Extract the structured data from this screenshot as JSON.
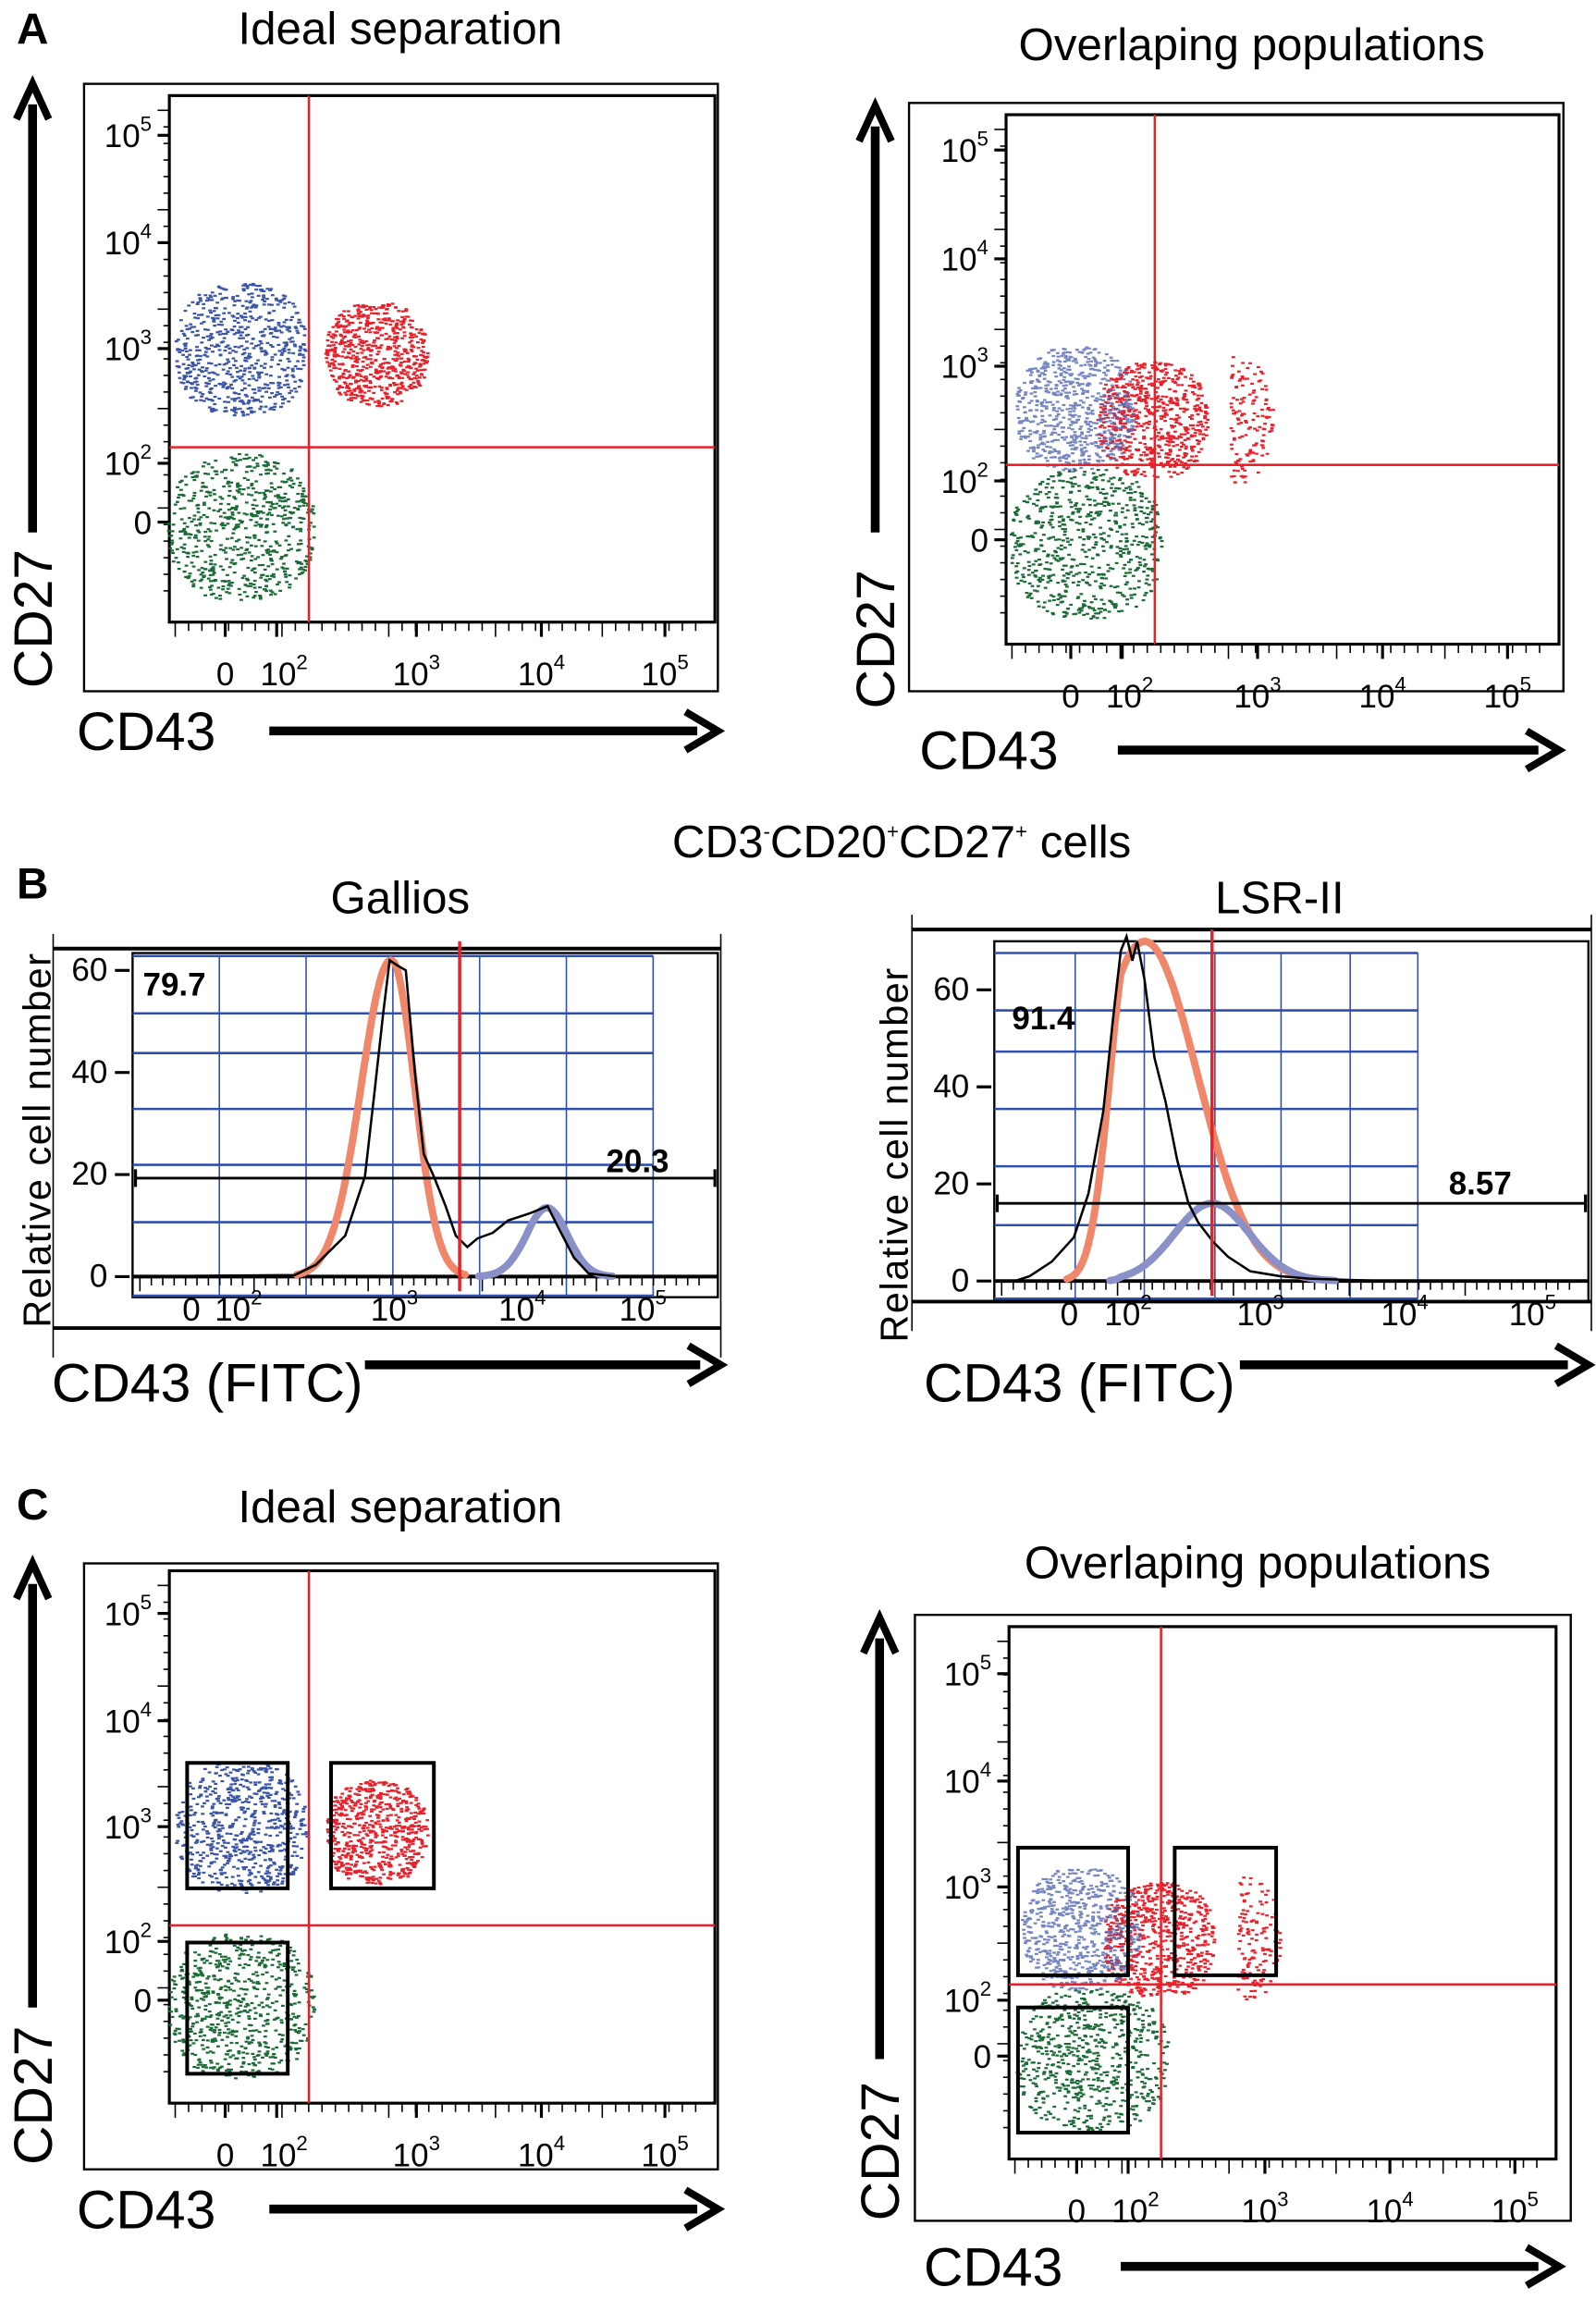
{
  "panel_letters": [
    "A",
    "B",
    "C"
  ],
  "header_b": {
    "parts": [
      [
        "CD3",
        "-"
      ],
      [
        "CD20",
        "+"
      ],
      [
        "CD27",
        "+"
      ],
      [
        " cells",
        ""
      ]
    ]
  },
  "chart_data": [
    {
      "panel": "A",
      "type": "scatter",
      "title": "Ideal separation",
      "xlabel": "CD43",
      "ylabel": "CD27",
      "x_ticks": [
        {
          "b": "0",
          "e": ""
        },
        {
          "b": "10",
          "e": "2"
        },
        {
          "b": "10",
          "e": "3"
        },
        {
          "b": "10",
          "e": "4"
        },
        {
          "b": "10",
          "e": "5"
        }
      ],
      "y_ticks": [
        {
          "b": "0",
          "e": ""
        },
        {
          "b": "10",
          "e": "2"
        },
        {
          "b": "10",
          "e": "3"
        },
        {
          "b": "10",
          "e": "4"
        },
        {
          "b": "10",
          "e": "5"
        }
      ],
      "quadrant_gate": {
        "CD43": 170,
        "CD27": 138
      },
      "populations": [
        {
          "color": "#1b6b36",
          "CD43": [
            -114,
            182
          ],
          "CD27": [
            -133,
            123
          ]
        },
        {
          "color": "#3a55a8",
          "CD43": [
            -100,
            162
          ],
          "CD27": [
            265,
            4200
          ]
        },
        {
          "color": "#e8212b",
          "CD43": [
            219,
            1200
          ],
          "CD27": [
            320,
            2800
          ]
        }
      ],
      "gate_boxes": []
    },
    {
      "panel": "A",
      "type": "scatter",
      "title": "Overlaping populations",
      "xlabel": "CD43",
      "ylabel": "CD27",
      "x_ticks": [
        {
          "b": "0",
          "e": ""
        },
        {
          "b": "10",
          "e": "2"
        },
        {
          "b": "10",
          "e": "3"
        },
        {
          "b": "10",
          "e": "4"
        },
        {
          "b": "10",
          "e": "5"
        }
      ],
      "y_ticks": [
        {
          "b": "0",
          "e": ""
        },
        {
          "b": "10",
          "e": "2"
        },
        {
          "b": "10",
          "e": "3"
        },
        {
          "b": "10",
          "e": "4"
        },
        {
          "b": "10",
          "e": "5"
        }
      ],
      "quadrant_gate": {
        "CD43": 174,
        "CD27": 138
      },
      "populations": [
        {
          "color": "#1b6b36",
          "CD43": [
            -120,
            195
          ],
          "CD27": [
            -133,
            130
          ]
        },
        {
          "color": "#e8212b",
          "CD43": [
            49,
            420
          ],
          "CD27": [
            107,
            1130
          ]
        },
        {
          "color": "#e8212b",
          "CD43": [
            300,
            1300
          ],
          "CD27": [
            95,
            1300
          ],
          "sparse": true
        },
        {
          "color": "#5468b4",
          "CD43": [
            -109,
            120
          ],
          "CD27": [
            123,
            1550
          ]
        }
      ],
      "gate_boxes": []
    },
    {
      "panel": "B",
      "type": "histogram",
      "title": "Gallios",
      "xlabel": "CD43 (FITC)",
      "ylabel": "Relative cell number",
      "x_ticks": [
        {
          "b": "0",
          "e": ""
        },
        {
          "b": "10",
          "e": "2"
        },
        {
          "b": "10",
          "e": "3"
        },
        {
          "b": "10",
          "e": "4"
        },
        {
          "b": "10",
          "e": "5"
        }
      ],
      "y_ticks": [
        "0",
        "20",
        "40",
        "60"
      ],
      "ylim": [
        0,
        65
      ],
      "threshold_CD43": 3240,
      "gate_bar_level": 19.3,
      "percentages": {
        "left": "79.7",
        "right": "20.3"
      },
      "data_curve": {
        "color": "#000000",
        "points": [
          [
            -140,
            0
          ],
          [
            100,
            0.2
          ],
          [
            245,
            0.3
          ],
          [
            330,
            2.3
          ],
          [
            500,
            8
          ],
          [
            660,
            19.6
          ],
          [
            760,
            36.9
          ],
          [
            850,
            51
          ],
          [
            935,
            62
          ],
          [
            1050,
            61
          ],
          [
            1230,
            60
          ],
          [
            1450,
            40
          ],
          [
            1700,
            24
          ],
          [
            2040,
            19.6
          ],
          [
            2520,
            13.8
          ],
          [
            3020,
            8
          ],
          [
            3720,
            5.8
          ],
          [
            4470,
            7.5
          ],
          [
            5890,
            8.6
          ],
          [
            7760,
            11
          ],
          [
            11500,
            12.4
          ],
          [
            16200,
            13.8
          ],
          [
            20000,
            9.5
          ],
          [
            26900,
            3.7
          ],
          [
            35500,
            0.6
          ],
          [
            61700,
            0
          ],
          [
            150000,
            0
          ]
        ]
      },
      "fits": [
        {
          "color": "#f0866a",
          "center_CD43": 950,
          "height": 62,
          "sd_decades": 0.18
        },
        {
          "color": "#8a90c8",
          "center_CD43": 16000,
          "height": 13.5,
          "sd_decades": 0.17
        }
      ]
    },
    {
      "panel": "B",
      "type": "histogram",
      "title": "LSR-II",
      "xlabel": "CD43 (FITC)",
      "ylabel": "Relative cell number",
      "x_ticks": [
        {
          "b": "0",
          "e": ""
        },
        {
          "b": "10",
          "e": "2"
        },
        {
          "b": "10",
          "e": "3"
        },
        {
          "b": "10",
          "e": "4"
        },
        {
          "b": "10",
          "e": "5"
        }
      ],
      "y_ticks": [
        "0",
        "20",
        "40",
        "60"
      ],
      "ylim": [
        0,
        72
      ],
      "threshold_CD43": 450,
      "gate_bar_level": 16,
      "percentages": {
        "left": "91.4",
        "right": "8.57"
      },
      "data_curve": {
        "color": "#000000",
        "points": [
          [
            -106,
            0
          ],
          [
            -77,
            1
          ],
          [
            -34,
            4
          ],
          [
            9,
            9
          ],
          [
            37,
            18
          ],
          [
            66,
            35
          ],
          [
            86,
            55
          ],
          [
            100,
            68
          ],
          [
            110,
            71
          ],
          [
            121,
            66
          ],
          [
            131,
            70
          ],
          [
            148,
            62
          ],
          [
            174,
            46
          ],
          [
            209,
            37
          ],
          [
            253,
            25
          ],
          [
            305,
            16
          ],
          [
            360,
            12
          ],
          [
            460,
            8
          ],
          [
            585,
            5
          ],
          [
            845,
            2
          ],
          [
            1360,
            1
          ],
          [
            2180,
            0.5
          ],
          [
            3480,
            0.3
          ],
          [
            7100,
            0
          ],
          [
            150000,
            0
          ]
        ]
      },
      "fits": [
        {
          "color": "#f0866a",
          "center_CD43": 148,
          "height": 70,
          "sd_decades": 0.38
        },
        {
          "color": "#8a90c8",
          "center_CD43": 450,
          "height": 16,
          "sd_decades": 0.27
        }
      ]
    },
    {
      "panel": "C",
      "type": "scatter",
      "title": "Ideal separation",
      "xlabel": "CD43",
      "ylabel": "CD27",
      "x_ticks": [
        {
          "b": "0",
          "e": ""
        },
        {
          "b": "10",
          "e": "2"
        },
        {
          "b": "10",
          "e": "3"
        },
        {
          "b": "10",
          "e": "4"
        },
        {
          "b": "10",
          "e": "5"
        }
      ],
      "y_ticks": [
        {
          "b": "0",
          "e": ""
        },
        {
          "b": "10",
          "e": "2"
        },
        {
          "b": "10",
          "e": "3"
        },
        {
          "b": "10",
          "e": "4"
        },
        {
          "b": "10",
          "e": "5"
        }
      ],
      "quadrant_gate": {
        "CD43": 170,
        "CD27": 138
      },
      "populations": [
        {
          "color": "#1b6b36",
          "CD43": [
            -114,
            182
          ],
          "CD27": [
            -133,
            123
          ]
        },
        {
          "color": "#3a55a8",
          "CD43": [
            -100,
            162
          ],
          "CD27": [
            265,
            4200
          ]
        },
        {
          "color": "#e8212b",
          "CD43": [
            219,
            1200
          ],
          "CD27": [
            320,
            2800
          ]
        }
      ],
      "gate_boxes": [
        {
          "CD43": [
            -74,
            120
          ],
          "CD27": [
            290,
            4000
          ]
        },
        {
          "CD43": [
            245,
            1380
          ],
          "CD27": [
            290,
            4000
          ]
        },
        {
          "CD43": [
            -74,
            120
          ],
          "CD27": [
            -125,
            98
          ]
        }
      ]
    },
    {
      "panel": "C",
      "type": "scatter",
      "title": "Overlaping populations",
      "xlabel": "CD43",
      "ylabel": "CD27",
      "x_ticks": [
        {
          "b": "0",
          "e": ""
        },
        {
          "b": "10",
          "e": "2"
        },
        {
          "b": "10",
          "e": "3"
        },
        {
          "b": "10",
          "e": "4"
        },
        {
          "b": "10",
          "e": "5"
        }
      ],
      "y_ticks": [
        {
          "b": "0",
          "e": ""
        },
        {
          "b": "10",
          "e": "2"
        },
        {
          "b": "10",
          "e": "3"
        },
        {
          "b": "10",
          "e": "4"
        },
        {
          "b": "10",
          "e": "5"
        }
      ],
      "quadrant_gate": {
        "CD43": 174,
        "CD27": 138
      },
      "populations": [
        {
          "color": "#1b6b36",
          "CD43": [
            -120,
            195
          ],
          "CD27": [
            -133,
            130
          ]
        },
        {
          "color": "#e8212b",
          "CD43": [
            49,
            420
          ],
          "CD27": [
            107,
            1130
          ]
        },
        {
          "color": "#e8212b",
          "CD43": [
            300,
            1300
          ],
          "CD27": [
            95,
            1300
          ],
          "sparse": true
        },
        {
          "color": "#5468b4",
          "CD43": [
            -109,
            120
          ],
          "CD27": [
            123,
            1550
          ]
        }
      ],
      "gate_boxes": [
        {
          "CD43": [
            -114,
            100
          ],
          "CD27": [
            166,
            2350
          ]
        },
        {
          "CD43": [
            219,
            1230
          ],
          "CD27": [
            166,
            2350
          ]
        },
        {
          "CD43": [
            -114,
            100
          ],
          "CD27": [
            -137,
            87
          ]
        }
      ]
    }
  ]
}
